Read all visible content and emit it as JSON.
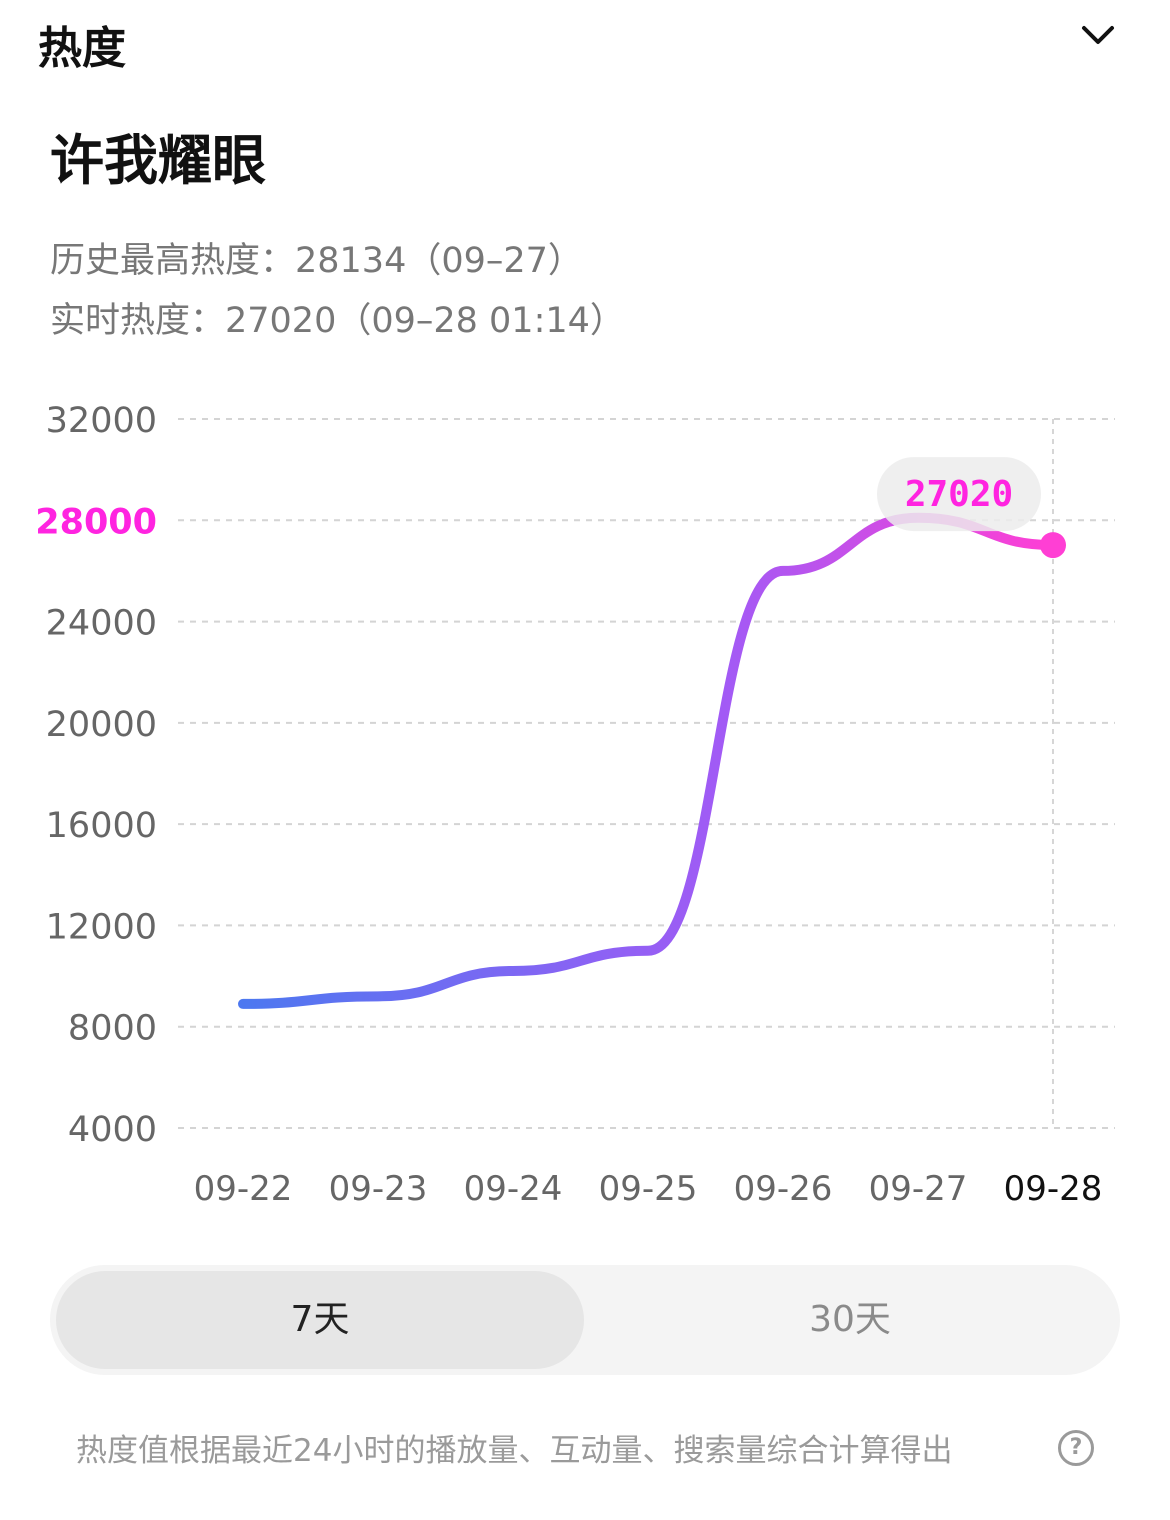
{
  "header": {
    "title": "热度",
    "toggle_icon": "chevron-down-icon"
  },
  "show": {
    "title": "许我耀眼"
  },
  "stats": {
    "peak": "历史最高热度：28134（09–27）",
    "realtime": "实时热度：27020（09–28 01:14）"
  },
  "chart_data": {
    "type": "line",
    "x": [
      "09-22",
      "09-23",
      "09-24",
      "09-25",
      "09-26",
      "09-27",
      "09-28"
    ],
    "series": [
      {
        "values": [
          8900,
          9200,
          10200,
          11000,
          26000,
          28100,
          27020
        ]
      }
    ],
    "ylim": [
      4000,
      32000
    ],
    "yticks": [
      4000,
      8000,
      12000,
      16000,
      20000,
      24000,
      28000,
      32000
    ],
    "highlight_tick": 28000,
    "current_value_label": "27020",
    "grid": true,
    "colors": {
      "start": "#4d78f0",
      "mid": "#a35af5",
      "end": "#ff3fd4",
      "highlight": "#ff24e0"
    }
  },
  "range_tabs": [
    {
      "label": "7天",
      "selected": true
    },
    {
      "label": "30天",
      "selected": false
    }
  ],
  "footnote": "热度值根据最近24小时的播放量、互动量、搜索量综合计算得出",
  "help_icon": "help-circle-icon",
  "help_glyph": "?"
}
